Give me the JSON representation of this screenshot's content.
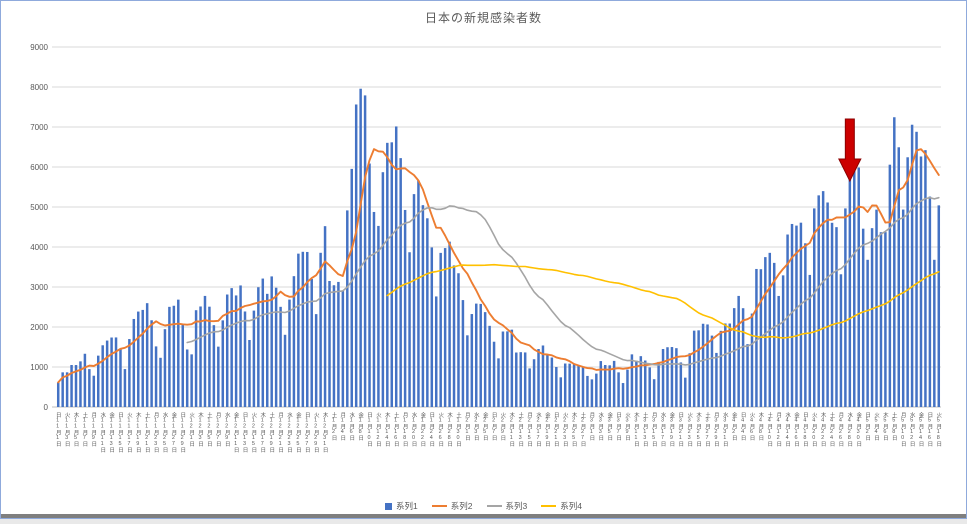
{
  "window": {
    "border_color": "#8FAADC"
  },
  "chart_data": {
    "type": "combo",
    "title": "日本の新規感染者数",
    "subtitle": "",
    "grid": true,
    "legend_position": "bottom",
    "y_axis": {
      "min": 0,
      "max": 9000,
      "step": 1000,
      "tick_labels": [
        "0",
        "1000",
        "2000",
        "3000",
        "4000",
        "5000",
        "6000",
        "7000",
        "8000",
        "9000"
      ]
    },
    "x_axis": {
      "label_every_n_points": 2,
      "tick_labels": [
        "日11月1日",
        "火11月3日",
        "木11月5日",
        "土11月7日",
        "月11月9日",
        "水11月11日",
        "金11月13日",
        "日11月15日",
        "火11月17日",
        "木11月19日",
        "土11月21日",
        "月11月23日",
        "水11月25日",
        "金11月27日",
        "日11月29日",
        "火12月1日",
        "木12月3日",
        "土12月5日",
        "月12月7日",
        "水12月9日",
        "金12月11日",
        "日12月13日",
        "火12月15日",
        "木12月17日",
        "土12月19日",
        "月12月21日",
        "水12月23日",
        "金12月25日",
        "日12月27日",
        "火12月29日",
        "木12月31日",
        "土1月2日",
        "月1月4日",
        "水1月6日",
        "金1月8日",
        "日1月10日",
        "火1月12日",
        "木1月14日",
        "土1月16日",
        "月1月18日",
        "水1月20日",
        "金1月22日",
        "日1月24日",
        "火1月26日",
        "木1月28日",
        "土1月30日",
        "月2月1日",
        "水2月3日",
        "金2月5日",
        "日2月7日",
        "火2月9日",
        "木2月11日",
        "土2月13日",
        "月2月15日",
        "水2月17日",
        "金2月19日",
        "日2月21日",
        "火2月23日",
        "木2月25日",
        "土2月27日",
        "月3月1日",
        "水3月3日",
        "金3月5日",
        "日3月7日",
        "火3月9日",
        "木3月11日",
        "土3月13日",
        "月3月15日",
        "水3月17日",
        "金3月19日",
        "日3月21日",
        "火3月23日",
        "木3月25日",
        "土3月27日",
        "月3月29日",
        "水3月31日",
        "金4月2日",
        "日4月4日",
        "火4月6日",
        "木4月8日",
        "土4月10日",
        "月4月12日",
        "水4月14日",
        "金4月16日",
        "日4月18日",
        "火4月20日",
        "木4月22日",
        "土4月24日",
        "月4月26日",
        "水4月28日",
        "金4月30日",
        "日5月2日",
        "火5月4日",
        "木5月6日",
        "土5月8日",
        "月5月10日",
        "水5月12日",
        "金5月14日",
        "日5月16日",
        "火5月18日"
      ]
    },
    "series": [
      {
        "name": "系列1",
        "type": "bar",
        "color": "#4472C4",
        "values": [
          614,
          866,
          867,
          1050,
          1049,
          1141,
          1331,
          947,
          782,
          1284,
          1543,
          1661,
          1737,
          1739,
          1441,
          948,
          1699,
          2201,
          2386,
          2427,
          2596,
          2168,
          1515,
          1230,
          1946,
          2504,
          2531,
          2684,
          2066,
          1438,
          1316,
          2420,
          2513,
          2777,
          2508,
          2046,
          1509,
          2166,
          2812,
          2972,
          2789,
          3039,
          2388,
          1675,
          2410,
          2994,
          3211,
          2829,
          3265,
          2982,
          2504,
          1805,
          2685,
          3271,
          3834,
          3880,
          3876,
          3200,
          2322,
          3855,
          4521,
          3150,
          3044,
          3127,
          2899,
          4915,
          5953,
          7563,
          7957,
          7790,
          6087,
          4876,
          4527,
          5870,
          6604,
          6617,
          7014,
          6222,
          4926,
          3869,
          5322,
          5663,
          5046,
          4718,
          3989,
          2764,
          3853,
          3973,
          4134,
          3539,
          3344,
          2673,
          1792,
          2324,
          2585,
          2577,
          2372,
          2029,
          1632,
          1216,
          1887,
          1891,
          1934,
          1362,
          1371,
          1364,
          965,
          1194,
          1450,
          1538,
          1301,
          1237,
          1000,
          742,
          1087,
          1084,
          1076,
          1038,
          999,
          777,
          691,
          835,
          1148,
          1050,
          1042,
          1153,
          866,
          599,
          934,
          1316,
          1157,
          1271,
          1162,
          989,
          695,
          1127,
          1450,
          1494,
          1499,
          1471,
          1114,
          734,
          1343,
          1909,
          1917,
          2081,
          2064,
          1785,
          1352,
          1904,
          2088,
          2087,
          2472,
          2777,
          2470,
          1571,
          2336,
          3451,
          3445,
          3747,
          3854,
          3603,
          2776,
          3291,
          4312,
          4576,
          4535,
          4608,
          4093,
          3302,
          4965,
          5291,
          5397,
          5113,
          4605,
          4496,
          3318,
          4965,
          5792,
          5918,
          5986,
          4458,
          3680,
          4471,
          4934,
          4370,
          4372,
          6058,
          7244,
          6493,
          4936,
          6243,
          7057,
          6880,
          6263,
          6421,
          5261,
          3680,
          5041
        ]
      },
      {
        "name": "系列2",
        "type": "line",
        "color": "#ED7D31",
        "derived": "7-day moving average of 系列1",
        "moving_average_window": 7,
        "starts_at_index": 0
      },
      {
        "name": "系列3",
        "type": "line",
        "color": "#A5A5A5",
        "derived": "30-day moving average of 系列1",
        "moving_average_window": 30,
        "starts_at_index": 29
      },
      {
        "name": "系列4",
        "type": "line",
        "color": "#FFC000",
        "derived": "75-day moving average of 系列1",
        "moving_average_window": 75,
        "starts_at_index": 74
      }
    ],
    "annotation": {
      "type": "red-arrow-down",
      "color": "#CC0000",
      "outline": "#8B0000",
      "points_to_index": 178
    },
    "colors": {
      "gridline": "#D9D9D9",
      "axis_line": "#BFBFBF",
      "axis_text": "#595959"
    }
  }
}
